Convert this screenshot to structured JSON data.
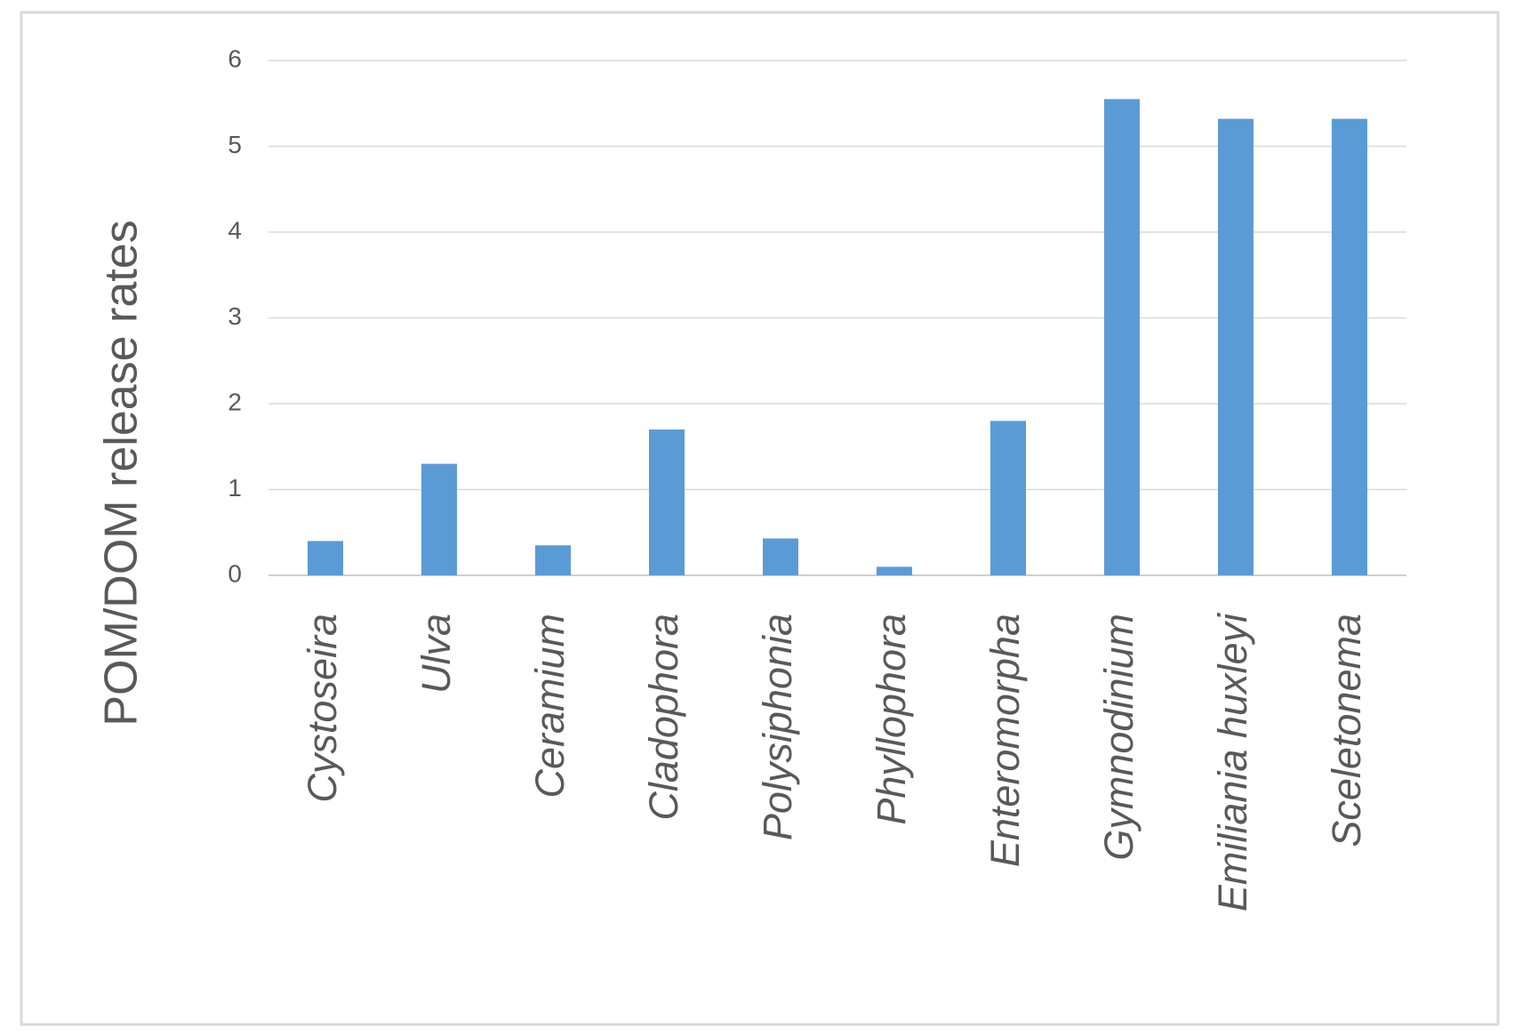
{
  "chart_data": {
    "type": "bar",
    "y_axis_label": "POM/DOM release rates",
    "categories": [
      "Cystoseira",
      "Ulva",
      "Ceramium",
      "Cladophora",
      "Polysiphonia",
      "Phyllophora",
      "Enteromorpha",
      "Gymnodinium",
      "Emiliania huxleyi",
      "Sceletonema"
    ],
    "values": [
      0.4,
      1.3,
      0.35,
      1.7,
      0.43,
      0.1,
      1.8,
      5.55,
      5.32,
      5.32
    ],
    "color": "#5b9bd5",
    "ylim": [
      0,
      6
    ],
    "yticks": [
      0,
      1,
      2,
      3,
      4,
      5,
      6
    ],
    "grid": true
  }
}
